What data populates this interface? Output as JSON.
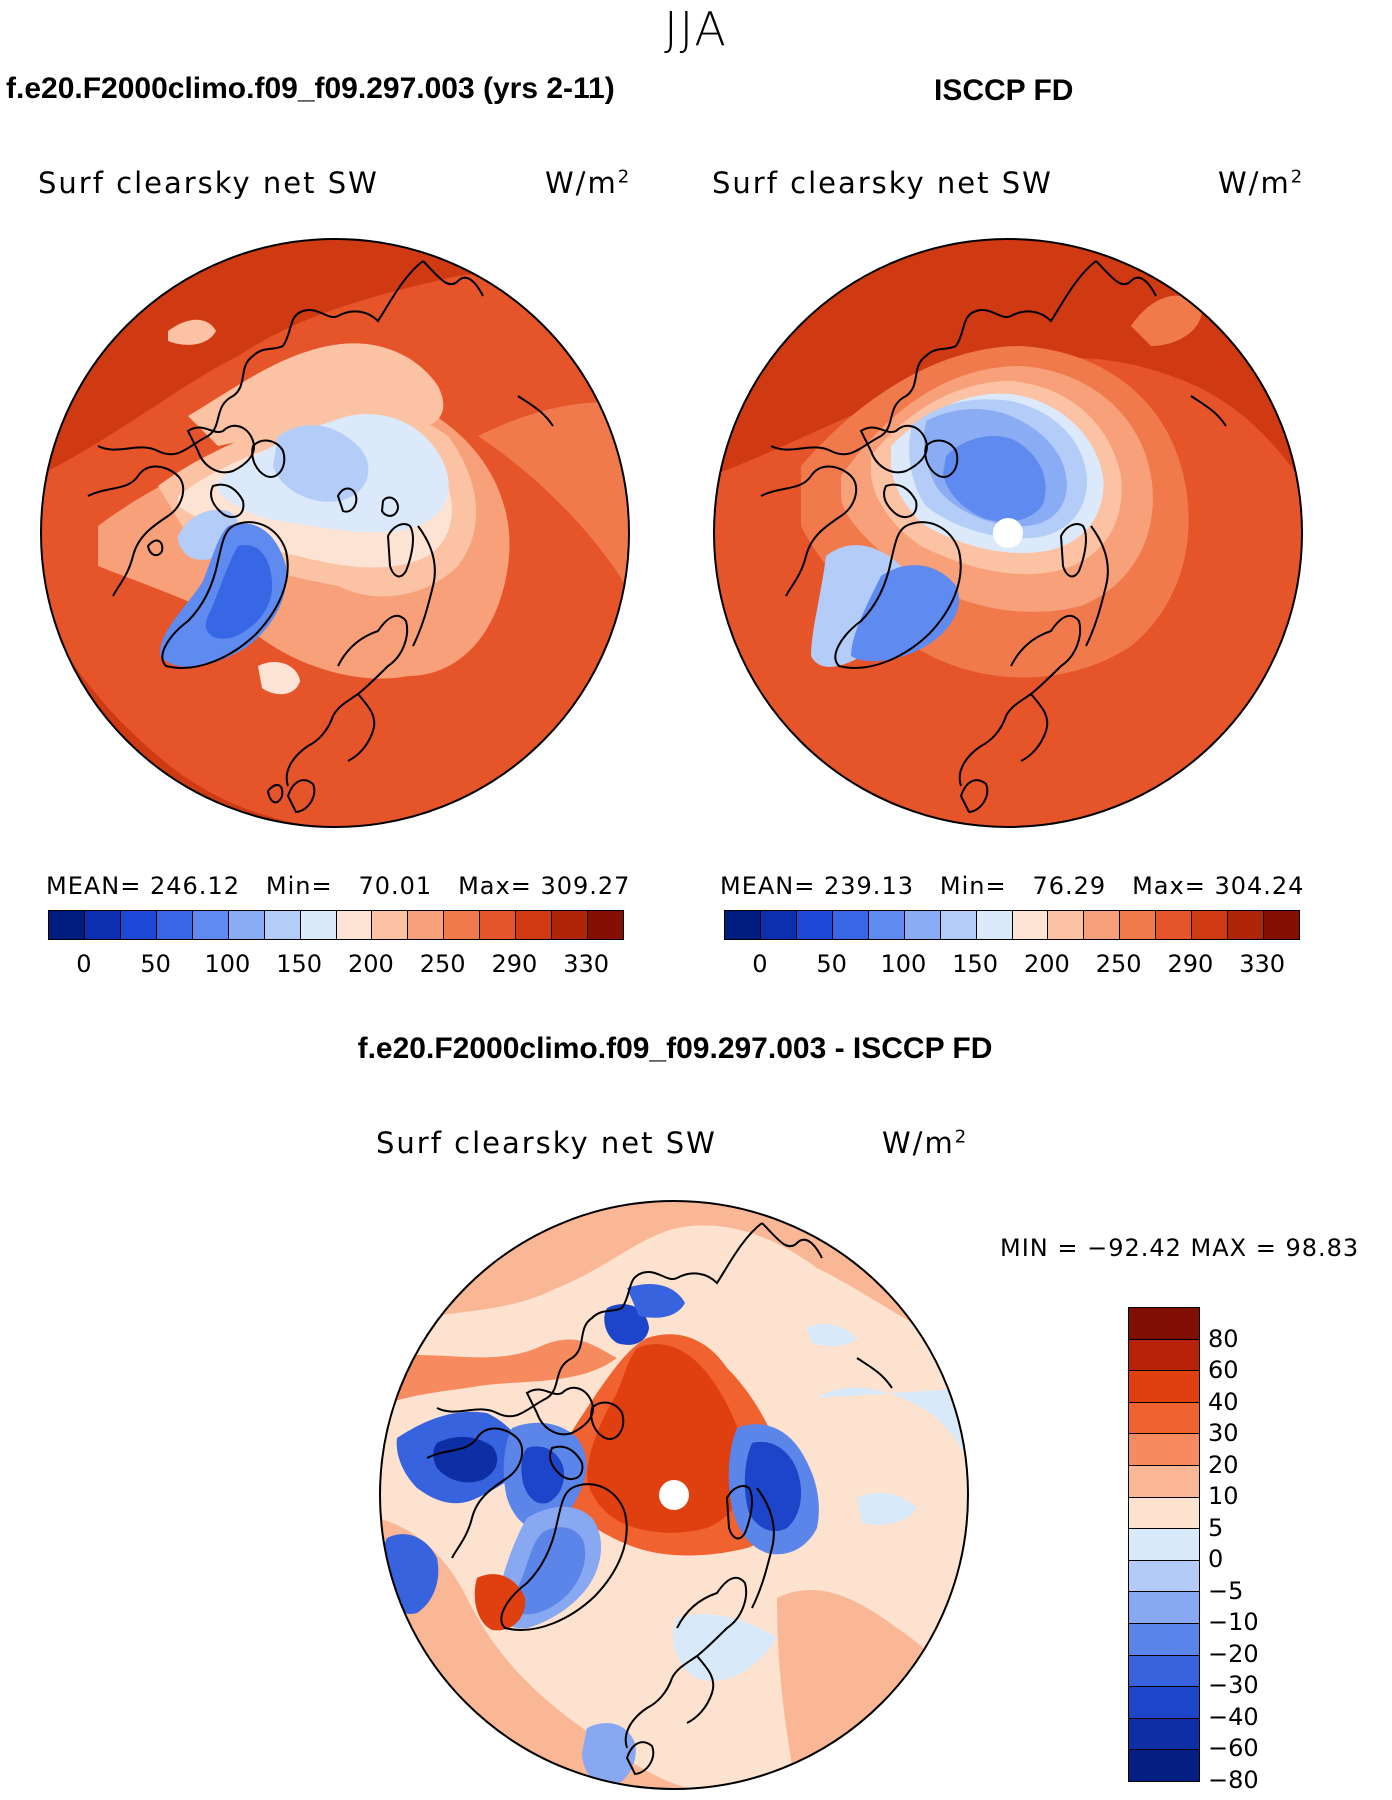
{
  "page": {
    "season": "JJA",
    "panels": [
      {
        "title": "f.e20.F2000climo.f09_f09.297.003 (yrs 2-11)",
        "field": "Surf clearsky net SW",
        "units_base": "W/m",
        "units_exp": "2",
        "stats": {
          "mean_label": "MEAN=",
          "mean": "246.12",
          "min_label": "Min=",
          "min": "70.01",
          "max_label": "Max=",
          "max": "309.27"
        }
      },
      {
        "title": "ISCCP FD",
        "field": "Surf clearsky net SW",
        "units_base": "W/m",
        "units_exp": "2",
        "stats": {
          "mean_label": "MEAN=",
          "mean": "239.13",
          "min_label": "Min=",
          "min": "76.29",
          "max_label": "Max=",
          "max": "304.24"
        }
      }
    ],
    "diff": {
      "title": "f.e20.F2000climo.f09_f09.297.003 - ISCCP FD",
      "field": "Surf clearsky net SW",
      "units_base": "W/m",
      "units_exp": "2",
      "minmax": "MIN = −92.42 MAX =   98.83"
    },
    "abs_colorbar": {
      "colors": [
        "#001c7f",
        "#0b2fae",
        "#1c49d6",
        "#3867e6",
        "#5f8af0",
        "#8aacf5",
        "#b4ccf8",
        "#dbe9fb",
        "#fde3d3",
        "#fbc2a4",
        "#f7a079",
        "#f17a4c",
        "#e6542a",
        "#cf3a13",
        "#ae2508",
        "#860f03"
      ],
      "labels": [
        "0",
        "50",
        "100",
        "150",
        "200",
        "250",
        "290",
        "330"
      ]
    },
    "diff_colorbar": {
      "colors": [
        "#7f0f03",
        "#b72209",
        "#e0400f",
        "#f0622f",
        "#f58b5e",
        "#fab796",
        "#fde2cf",
        "#d8e9fa",
        "#b3cbf6",
        "#88a8f1",
        "#5c85ea",
        "#3863df",
        "#1c45c9",
        "#0d2ea4",
        "#041e82"
      ],
      "labels": [
        "80",
        "60",
        "40",
        "30",
        "20",
        "10",
        "5",
        "0",
        "−5",
        "−10",
        "−20",
        "−30",
        "−40",
        "−60",
        "−80"
      ]
    }
  }
}
